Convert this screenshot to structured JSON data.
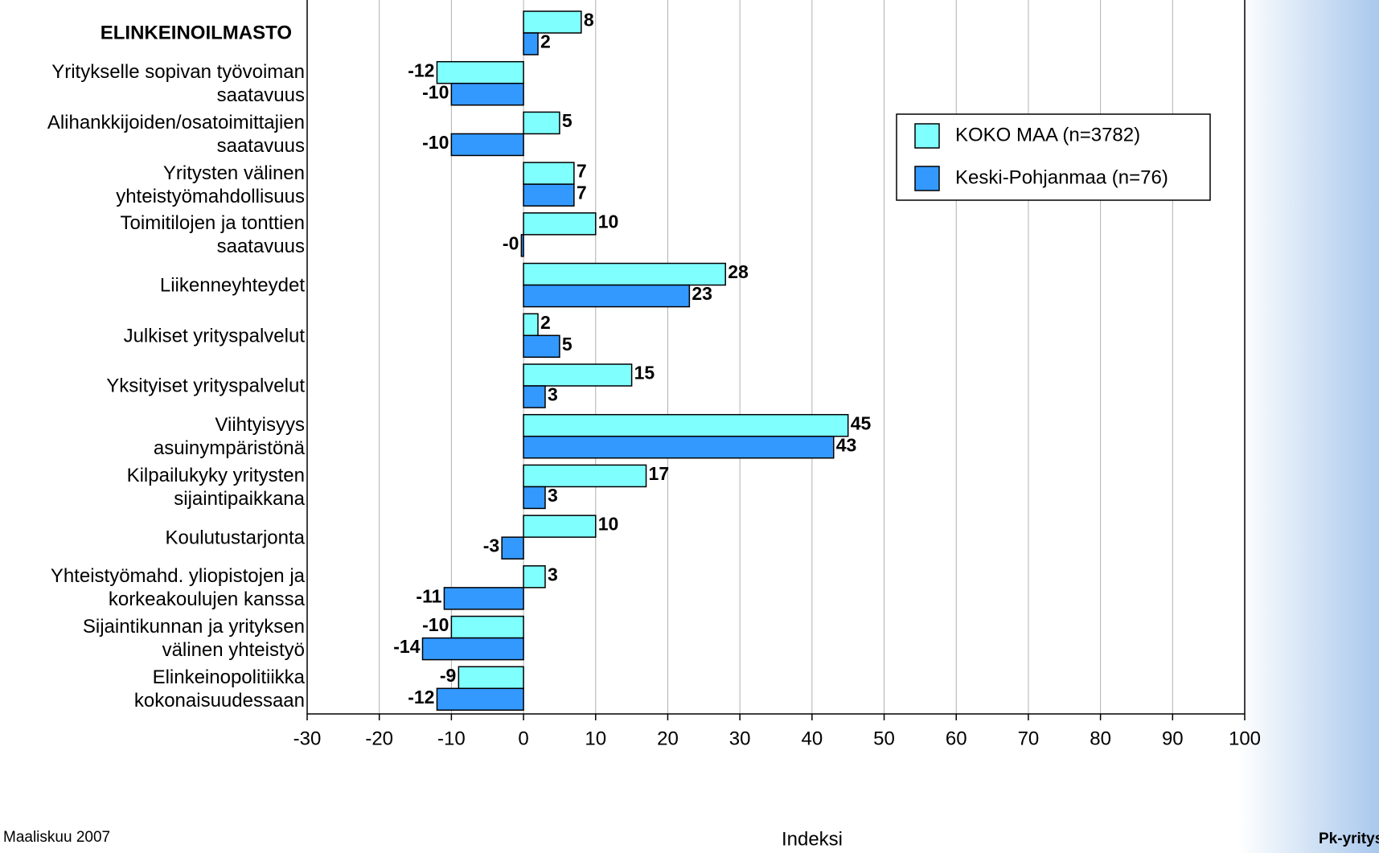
{
  "chart_data": {
    "type": "hbar",
    "categories": [
      "ELINKEINOILMASTO",
      "Yritykselle sopivan työvoiman\nsaatavuus ",
      "Alihankkijoiden/osatoimittajien\nsaatavuus ",
      "Yritysten välinen \nyhteistyömahdollisuus",
      "Toimitilojen ja tonttien\nsaatavuus ",
      "Liikenneyhteydet ",
      "Julkiset yrityspalvelut",
      "Yksityiset yrityspalvelut",
      "Viihtyisyys \nasuinympäristönä",
      "Kilpailukyky yritysten\nsijaintipaikkana ",
      "Koulutustarjonta",
      "Yhteistyömahd. yliopistojen ja\nkorkeakoulujen kanssa ",
      "Sijaintikunnan ja yrityksen\nvälinen yhteistyö ",
      "Elinkeinopolitiikka \nkokonaisuudessaan"
    ],
    "series": [
      {
        "name": "KOKO MAA (n=3782)",
        "color": "#80ffff",
        "values": [
          8,
          -12,
          5,
          7,
          10,
          28,
          2,
          15,
          45,
          17,
          10,
          3,
          -10,
          -9
        ]
      },
      {
        "name": "Keski-Pohjanmaa (n=76)",
        "color": "#3399ff",
        "values": [
          2,
          -10,
          -10,
          7,
          -0.3,
          23,
          5,
          3,
          43,
          3,
          -3,
          -11,
          -14,
          -12
        ],
        "value_labels": [
          "2",
          "-10",
          "-10",
          "7",
          "-0",
          "23",
          "5",
          "3",
          "43",
          "3",
          "-3",
          "-11",
          "-14",
          "-12"
        ]
      }
    ],
    "xlabel": "Indeksi",
    "xlim": [
      -30,
      100
    ],
    "xticks": [
      -30,
      -20,
      -10,
      0,
      10,
      20,
      30,
      40,
      50,
      60,
      70,
      80,
      90,
      100
    ],
    "grid": true,
    "legend": "upper right",
    "footer_left": "Maaliskuu 2007",
    "footer_right": "Pk-yritysb"
  }
}
